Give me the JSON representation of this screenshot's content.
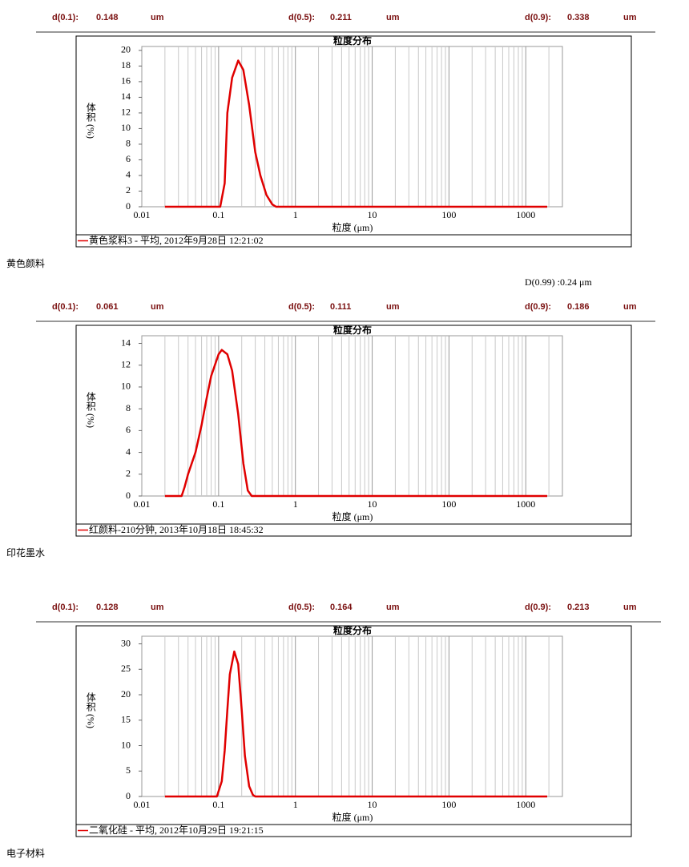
{
  "panels": [
    {
      "stats": [
        {
          "label": "d(0.1):",
          "value": 0.148,
          "unit": "um"
        },
        {
          "label": "d(0.5):",
          "value": 0.211,
          "unit": "um"
        },
        {
          "label": "d(0.9):",
          "value": 0.338,
          "unit": "um"
        }
      ],
      "caption": "黄色颜料"
    },
    {
      "extra": "D(0.99) :0.24 μm",
      "stats": [
        {
          "label": "d(0.1):",
          "value": 0.061,
          "unit": "um"
        },
        {
          "label": "d(0.5):",
          "value": 0.111,
          "unit": "um"
        },
        {
          "label": "d(0.9):",
          "value": 0.186,
          "unit": "um"
        }
      ],
      "caption": "印花墨水"
    },
    {
      "stats": [
        {
          "label": "d(0.1):",
          "value": 0.128,
          "unit": "um"
        },
        {
          "label": "d(0.5):",
          "value": 0.164,
          "unit": "um"
        },
        {
          "label": "d(0.9):",
          "value": 0.213,
          "unit": "um"
        }
      ],
      "caption": "电子材料"
    }
  ],
  "chart_data": [
    {
      "type": "line",
      "title": "粒度分布",
      "x_label": "粒度 (μm)",
      "y_label": "体积 (%)",
      "x_scale": "log",
      "grid": "x",
      "log_minor_grid": true,
      "xlim": [
        0.01,
        3000
      ],
      "xticks": [
        0.01,
        0.1,
        1,
        10,
        100,
        1000
      ],
      "ylim": [
        0,
        20.5
      ],
      "yticks": [
        0,
        2,
        4,
        6,
        8,
        10,
        12,
        14,
        16,
        18,
        20
      ],
      "x": [
        0.02,
        0.105,
        0.12,
        0.13,
        0.15,
        0.18,
        0.21,
        0.25,
        0.3,
        0.35,
        0.42,
        0.5,
        0.56,
        1900
      ],
      "series": [
        {
          "name": "黄色浆料3 - 平均, 2012年9月28日 12:21:02",
          "color": "#e00000",
          "values": [
            0,
            0,
            3,
            12,
            16.5,
            18.7,
            17.5,
            13,
            7,
            4,
            1.5,
            0.3,
            0,
            0
          ]
        }
      ]
    },
    {
      "type": "line",
      "title": "粒度分布",
      "x_label": "粒度 (μm)",
      "y_label": "体积 (%)",
      "x_scale": "log",
      "grid": "x",
      "log_minor_grid": true,
      "xlim": [
        0.01,
        3000
      ],
      "xticks": [
        0.01,
        0.1,
        1,
        10,
        100,
        1000
      ],
      "ylim": [
        0,
        14.7
      ],
      "yticks": [
        0,
        2,
        4,
        6,
        8,
        10,
        12,
        14
      ],
      "x": [
        0.02,
        0.033,
        0.036,
        0.04,
        0.05,
        0.06,
        0.07,
        0.08,
        0.1,
        0.11,
        0.13,
        0.15,
        0.18,
        0.21,
        0.24,
        0.27,
        1900
      ],
      "series": [
        {
          "name": "红颜料-210分钟, 2013年10月18日 18:45:32",
          "color": "#e00000",
          "values": [
            0,
            0,
            0.8,
            2,
            4,
            6.5,
            9,
            11,
            13,
            13.4,
            13,
            11.5,
            7.5,
            3,
            0.5,
            0,
            0
          ]
        }
      ]
    },
    {
      "type": "line",
      "title": "粒度分布",
      "x_label": "粒度 (μm)",
      "y_label": "体积 (%)",
      "x_scale": "log",
      "grid": "x",
      "log_minor_grid": true,
      "xlim": [
        0.01,
        3000
      ],
      "xticks": [
        0.01,
        0.1,
        1,
        10,
        100,
        1000
      ],
      "ylim": [
        0,
        31.5
      ],
      "yticks": [
        0,
        5,
        10,
        15,
        20,
        25,
        30
      ],
      "x": [
        0.02,
        0.095,
        0.11,
        0.12,
        0.13,
        0.14,
        0.16,
        0.18,
        0.2,
        0.22,
        0.25,
        0.28,
        0.3,
        1900
      ],
      "series": [
        {
          "name": "二氧化硅 - 平均, 2012年10月29日 19:21:15",
          "color": "#e00000",
          "values": [
            0,
            0,
            3,
            9,
            17,
            24,
            28.5,
            26,
            17,
            8,
            2,
            0.3,
            0,
            0
          ]
        }
      ]
    }
  ]
}
